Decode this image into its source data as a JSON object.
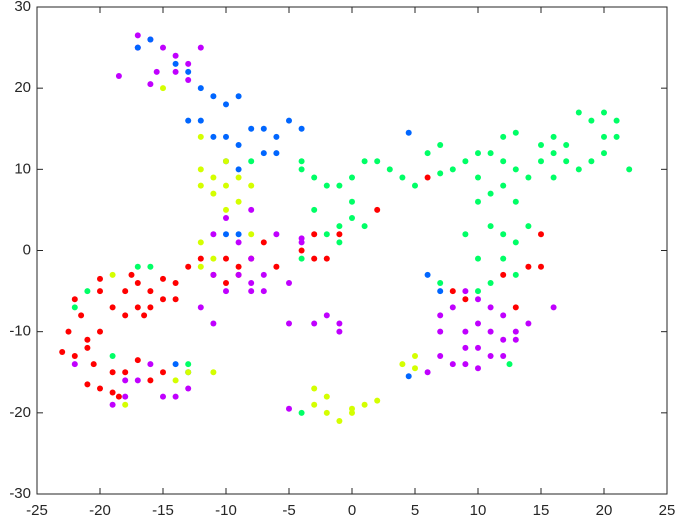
{
  "chart_data": {
    "type": "scatter",
    "xlim": [
      -25,
      25
    ],
    "xticks": [
      -25,
      -20,
      -15,
      -10,
      -5,
      0,
      5,
      10,
      15,
      20,
      25
    ],
    "ylim": [
      -30,
      30
    ],
    "yticks": [
      -30,
      -20,
      -10,
      0,
      10,
      20,
      30
    ],
    "series": [
      {
        "color": "#ff0000",
        "x": [
          -22,
          -21.5,
          -22.5,
          -21,
          -20,
          -21,
          -22,
          -20.5,
          -21,
          -20,
          -19,
          -18.5,
          -19,
          -20,
          -19,
          -18,
          -17,
          -18,
          -17,
          -16,
          -16,
          -15,
          -14,
          -15,
          -16.5,
          -17.5,
          -14,
          -13,
          -18,
          -17,
          -15,
          -16,
          -23,
          -20,
          -10,
          -9,
          -8,
          -10,
          -11,
          -7,
          -6,
          -4,
          -3,
          -2,
          -1,
          2,
          6,
          12,
          13,
          14,
          15,
          15,
          9,
          8,
          -3,
          -12,
          -9
        ],
        "y": [
          -6,
          -8,
          -10,
          -11,
          -10,
          -12,
          -13,
          -14,
          -16.5,
          -17,
          -17.5,
          -18,
          -15,
          -5,
          -7,
          -8,
          -7,
          -5,
          -4,
          -5,
          -7,
          -6,
          -4,
          -3.5,
          -8,
          -3,
          -6,
          -2,
          -15,
          -13.5,
          -15,
          -16,
          -12.5,
          -3.5,
          -4,
          -2,
          -1,
          -1,
          -3,
          1,
          -2,
          0,
          2,
          -1,
          2,
          5,
          9,
          -3,
          -7,
          -2,
          -2,
          2,
          -6,
          -5,
          -1,
          -1,
          -3
        ]
      },
      {
        "color": "#c000ff",
        "x": [
          -17,
          -16,
          -15,
          -14,
          -13,
          -12,
          -17,
          -15.5,
          -14,
          -13,
          -18.5,
          -16,
          -10,
          -11,
          -9,
          -8,
          -7,
          -10,
          -9,
          -11,
          -8,
          -7,
          -12,
          -11,
          -6,
          -4,
          -3,
          -2,
          -1,
          -1,
          -5,
          -5,
          -13,
          -14,
          -15,
          -18,
          -18,
          -17,
          -16,
          -19,
          7,
          8,
          9,
          10,
          11,
          12,
          8,
          9,
          10,
          11,
          12,
          13,
          14,
          7,
          7,
          6,
          10,
          12,
          13,
          11,
          9,
          16,
          9,
          10,
          -5,
          -8,
          -8,
          -4,
          -22
        ],
        "y": [
          26.5,
          26,
          25,
          24,
          23,
          25,
          25,
          22,
          22,
          21,
          21.5,
          20.5,
          4,
          2,
          1,
          -1,
          -3,
          -5,
          -3,
          -3,
          -4,
          -5,
          -7,
          -9,
          2,
          1,
          -9,
          -8,
          -9,
          -10,
          -9,
          -19.5,
          -17,
          -18,
          -18,
          -18,
          -16,
          -16,
          -14,
          -19,
          -8,
          -7,
          -10,
          -12,
          -10,
          -11,
          -14,
          -14,
          -14.5,
          -13,
          -13,
          -11,
          -9,
          -10,
          -13,
          -15,
          -9,
          -8,
          -10,
          -7,
          -12,
          -7,
          -5,
          -6,
          -4,
          -5,
          5,
          1.5,
          -14
        ]
      },
      {
        "color": "#0066ff",
        "x": [
          -17,
          -16,
          -14,
          -13,
          -12,
          -11,
          -10,
          -9,
          -13,
          -12,
          -11,
          -10,
          -9,
          -8,
          -7,
          -6,
          -5,
          -4,
          -6,
          -7,
          -9,
          -10,
          -10,
          -9,
          -14,
          -13,
          6,
          4.5,
          4.5,
          7
        ],
        "y": [
          25,
          26,
          23,
          22,
          20,
          19,
          18,
          19,
          16,
          16,
          14,
          14,
          13,
          15,
          15,
          14,
          16,
          15,
          12,
          12,
          10,
          11,
          2,
          2,
          -14,
          -15,
          -3,
          -15.5,
          14.5,
          -5
        ]
      },
      {
        "color": "#00ff66",
        "x": [
          -4,
          -3,
          -2,
          -1,
          0,
          1,
          2,
          3,
          4,
          5,
          6,
          7,
          8,
          9,
          10,
          11,
          12,
          13,
          14,
          10,
          11,
          12,
          13,
          10,
          11,
          12,
          13,
          14,
          12,
          13,
          10,
          11,
          15,
          16,
          17,
          16,
          17,
          18,
          19,
          20,
          19,
          20,
          21,
          21,
          20,
          18,
          22,
          16,
          15,
          -1,
          0,
          1,
          -2,
          -3,
          -1,
          0,
          -16,
          -17,
          -22,
          -21,
          -13,
          -19,
          -4,
          -4,
          7,
          9,
          10,
          -4,
          -8,
          12.5,
          7,
          12,
          13
        ],
        "y": [
          10,
          9,
          8,
          8,
          9,
          11,
          11,
          10,
          9,
          8,
          12,
          13,
          10,
          11,
          12,
          12,
          11,
          10,
          9,
          9,
          7,
          8,
          6,
          6,
          3,
          2,
          1,
          3,
          -1,
          -3,
          -5,
          -4,
          13,
          14,
          13,
          12,
          11,
          10,
          11,
          12,
          16,
          17,
          16,
          14,
          14,
          17,
          10,
          9,
          11,
          3,
          4,
          3,
          2,
          5,
          1,
          6,
          -2,
          -2,
          -7,
          -5,
          -14,
          -13,
          -1,
          -20,
          -4,
          2,
          -1,
          11,
          11,
          -14,
          9.5,
          14,
          14.5
        ]
      },
      {
        "color": "#d4ff00",
        "x": [
          -11,
          -10,
          -9,
          -12,
          -11,
          -8,
          -10,
          -12,
          -9,
          -10,
          -12,
          -12,
          -11,
          -8,
          -3,
          -2,
          -2,
          -1,
          0,
          1,
          2,
          -3,
          0,
          -14,
          -13,
          -11,
          -18,
          4,
          5,
          5,
          -15,
          -19,
          -12
        ],
        "y": [
          9,
          8,
          9,
          8,
          7,
          8,
          11,
          10,
          6,
          5,
          14,
          1,
          -1,
          2,
          -17,
          -18,
          -20,
          -21,
          -20,
          -19,
          -18.5,
          -19,
          -19.5,
          -16,
          -15,
          -15,
          -19,
          -14,
          -13,
          -14.5,
          20,
          -3,
          -2
        ]
      }
    ]
  }
}
